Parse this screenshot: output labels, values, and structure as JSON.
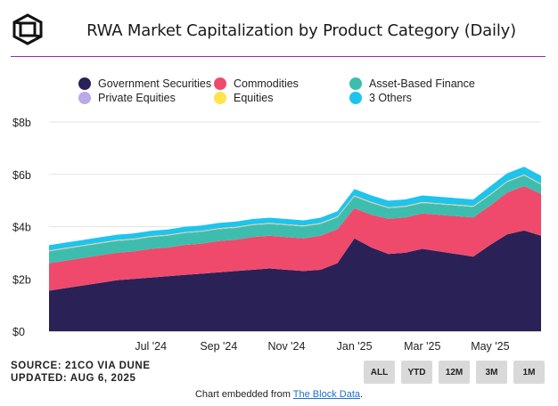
{
  "header": {
    "title": "RWA Market Capitalization by Product Category (Daily)",
    "logo_icon": "cube-icon"
  },
  "source": {
    "line1": "SOURCE: 21CO VIA DUNE",
    "line2": "UPDATED: AUG 6, 2025"
  },
  "range_buttons": [
    "ALL",
    "YTD",
    "12M",
    "3M",
    "1M"
  ],
  "embed": {
    "prefix": "Chart embedded from ",
    "link": "The Block Data",
    "suffix": "."
  },
  "colors": {
    "Government Securities": "#2a2157",
    "Commodities": "#ef4a6b",
    "Asset-Based Finance": "#3dbdae",
    "Private Equities": "#b9a9e6",
    "Equities": "#ffe44a",
    "3 Others": "#1fc4ec",
    "title_rule": "#8c2fb0"
  },
  "chart_data": {
    "type": "area",
    "stacked": true,
    "title": "RWA Market Capitalization by Product Category (Daily)",
    "xlabel": "",
    "ylabel": "",
    "ylim": [
      0,
      8
    ],
    "y_unit": "billion USD",
    "yticks": [
      "$0",
      "$2b",
      "$4b",
      "$6b",
      "$8b"
    ],
    "ytick_values": [
      0,
      2,
      4,
      6,
      8
    ],
    "xticks": [
      "Jul '24",
      "Sep '24",
      "Nov '24",
      "Jan '25",
      "Mar '25",
      "May '25"
    ],
    "xtick_positions": [
      6,
      10,
      14,
      18,
      22,
      26
    ],
    "grid": true,
    "legend": "top",
    "x": [
      0,
      1,
      2,
      3,
      4,
      5,
      6,
      7,
      8,
      9,
      10,
      11,
      12,
      13,
      14,
      15,
      16,
      17,
      18,
      19,
      20,
      21,
      22,
      23,
      24,
      25,
      26,
      27,
      28,
      29
    ],
    "series": [
      {
        "name": "Government Securities",
        "values": [
          1.55,
          1.65,
          1.75,
          1.85,
          1.95,
          2.0,
          2.05,
          2.1,
          2.15,
          2.2,
          2.25,
          2.3,
          2.35,
          2.4,
          2.35,
          2.3,
          2.35,
          2.6,
          3.55,
          3.2,
          2.95,
          3.0,
          3.15,
          3.05,
          2.95,
          2.85,
          3.3,
          3.7,
          3.85,
          3.65
        ]
      },
      {
        "name": "Commodities",
        "values": [
          1.05,
          1.05,
          1.05,
          1.05,
          1.05,
          1.05,
          1.1,
          1.1,
          1.15,
          1.15,
          1.2,
          1.2,
          1.25,
          1.25,
          1.25,
          1.25,
          1.3,
          1.3,
          1.15,
          1.25,
          1.35,
          1.35,
          1.35,
          1.4,
          1.45,
          1.5,
          1.5,
          1.6,
          1.7,
          1.6
        ]
      },
      {
        "name": "Asset-Based Finance",
        "values": [
          0.45,
          0.45,
          0.45,
          0.45,
          0.45,
          0.45,
          0.45,
          0.45,
          0.45,
          0.45,
          0.45,
          0.45,
          0.45,
          0.45,
          0.45,
          0.45,
          0.45,
          0.45,
          0.45,
          0.45,
          0.4,
          0.4,
          0.4,
          0.4,
          0.4,
          0.4,
          0.4,
          0.4,
          0.4,
          0.35
        ]
      },
      {
        "name": "Private Equities",
        "values": [
          0.02,
          0.02,
          0.02,
          0.02,
          0.02,
          0.02,
          0.02,
          0.02,
          0.02,
          0.02,
          0.02,
          0.02,
          0.02,
          0.02,
          0.02,
          0.02,
          0.02,
          0.02,
          0.02,
          0.02,
          0.02,
          0.02,
          0.02,
          0.02,
          0.02,
          0.02,
          0.02,
          0.02,
          0.02,
          0.02
        ]
      },
      {
        "name": "Equities",
        "values": [
          0.02,
          0.02,
          0.02,
          0.02,
          0.02,
          0.02,
          0.02,
          0.02,
          0.02,
          0.02,
          0.02,
          0.02,
          0.02,
          0.02,
          0.02,
          0.02,
          0.02,
          0.02,
          0.02,
          0.02,
          0.02,
          0.02,
          0.02,
          0.02,
          0.02,
          0.02,
          0.02,
          0.02,
          0.02,
          0.02
        ]
      },
      {
        "name": "3 Others",
        "values": [
          0.2,
          0.2,
          0.2,
          0.2,
          0.2,
          0.2,
          0.2,
          0.2,
          0.2,
          0.2,
          0.2,
          0.2,
          0.2,
          0.2,
          0.2,
          0.2,
          0.2,
          0.2,
          0.25,
          0.25,
          0.25,
          0.25,
          0.25,
          0.25,
          0.25,
          0.25,
          0.3,
          0.3,
          0.3,
          0.3
        ]
      }
    ]
  }
}
